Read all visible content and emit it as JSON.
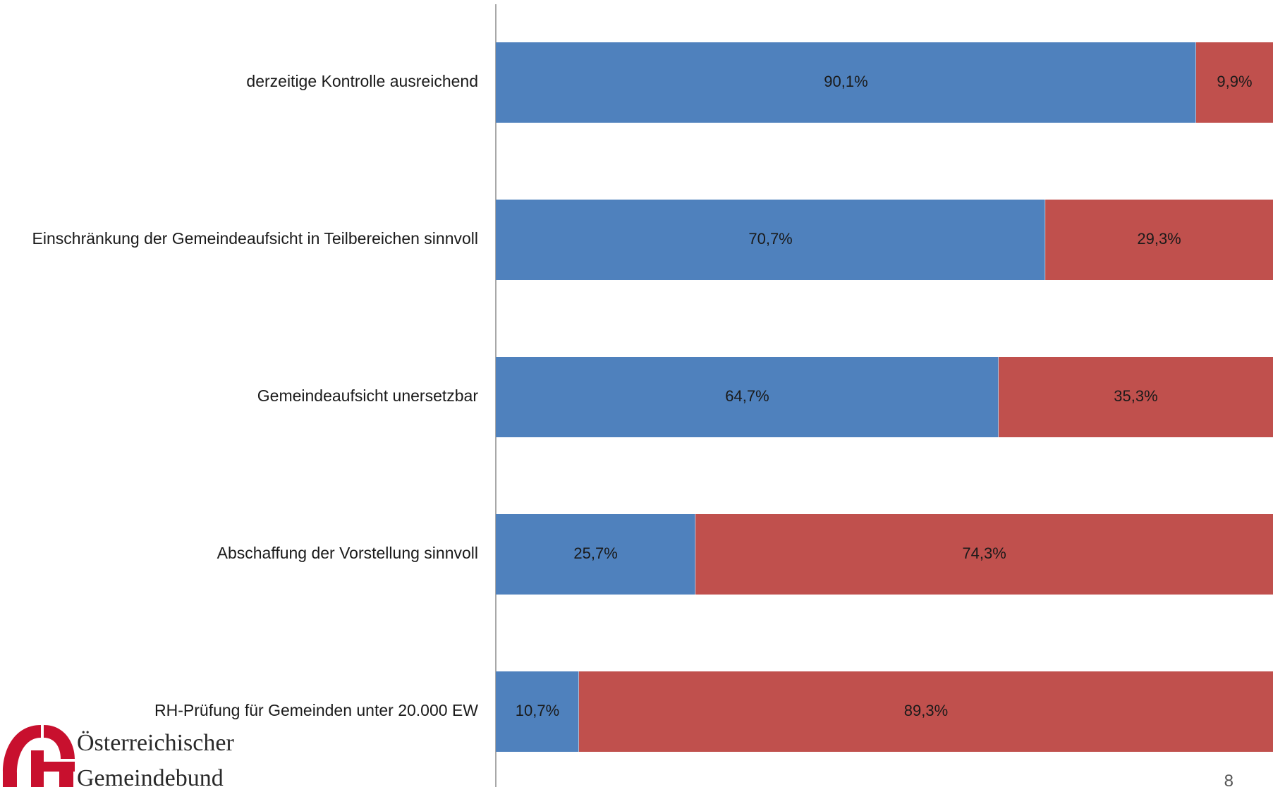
{
  "chart_data": {
    "type": "bar",
    "orientation": "horizontal",
    "stacked": true,
    "categories": [
      "derzeitige Kontrolle ausreichend",
      "Einschränkung der Gemeindeaufsicht in Teilbereichen sinnvoll",
      "Gemeindeaufsicht unersetzbar",
      "Abschaffung der Vorstellung sinnvoll",
      "RH-Prüfung für Gemeinden unter 20.000 EW"
    ],
    "series": [
      {
        "values": [
          90.1,
          70.7,
          64.7,
          25.7,
          10.7
        ],
        "labels": [
          "90,1%",
          "70,7%",
          "64,7%",
          "25,7%",
          "10,7%"
        ],
        "color": "#4f81bd"
      },
      {
        "values": [
          9.9,
          29.3,
          35.3,
          74.3,
          89.3
        ],
        "labels": [
          "9,9%",
          "29,3%",
          "35,3%",
          "74,3%",
          "89,3%"
        ],
        "color": "#c0504d"
      }
    ],
    "xlim": [
      0,
      100
    ],
    "grid": false,
    "legend": "none"
  },
  "logo": {
    "line1": "Österreichischer",
    "line2": "Gemeindebund",
    "color": "#c8102e"
  },
  "page_number": "8"
}
